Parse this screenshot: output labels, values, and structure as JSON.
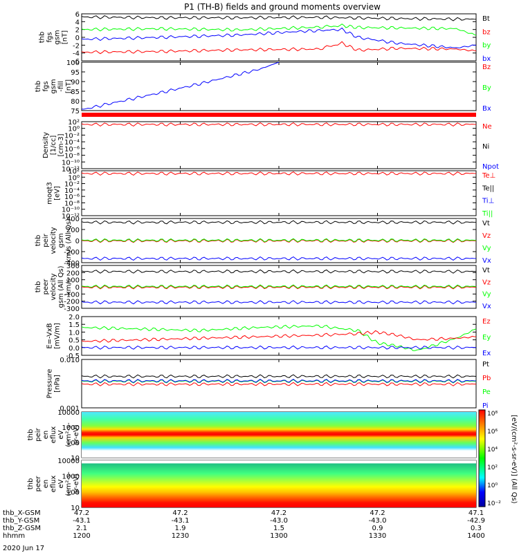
{
  "title": "P1 (TH-B) fields and ground moments overview",
  "colors": {
    "black": "#000000",
    "red": "#ff0000",
    "green": "#00ff00",
    "blue": "#0000ff"
  },
  "chart_data": [
    {
      "type": "line",
      "ylabel": [
        "thb",
        "fgs",
        "gsm",
        "[nT]"
      ],
      "ylim": [
        -6,
        6
      ],
      "yticks": [
        "6",
        "4",
        "2",
        "0",
        "-2",
        "-4",
        "-6"
      ],
      "legend": [
        {
          "name": "Bt",
          "color": "#000000"
        },
        {
          "name": "bz",
          "color": "#ff0000"
        },
        {
          "name": "by",
          "color": "#00ff00"
        },
        {
          "name": "bx",
          "color": "#0000ff"
        }
      ],
      "series": [
        {
          "name": "Bt",
          "color": "#000000",
          "x": [
            0,
            0.2,
            0.4,
            0.6,
            0.8,
            1
          ],
          "values": [
            5.2,
            5,
            5,
            5.1,
            4.8,
            4.6
          ]
        },
        {
          "name": "by",
          "color": "#00ff00",
          "x": [
            0,
            0.2,
            0.4,
            0.6,
            0.66,
            0.7,
            0.8,
            0.95,
            1
          ],
          "values": [
            2,
            2.2,
            1.9,
            2.6,
            3,
            2.5,
            2.4,
            2.2,
            0.5
          ]
        },
        {
          "name": "bx",
          "color": "#0000ff",
          "x": [
            0,
            0.2,
            0.4,
            0.55,
            0.66,
            0.7,
            0.8,
            0.95,
            1
          ],
          "values": [
            -0.5,
            0,
            0.6,
            1.5,
            2,
            0,
            -1.5,
            -2.7,
            -2
          ]
        },
        {
          "name": "bz",
          "color": "#ff0000",
          "x": [
            0,
            0.2,
            0.4,
            0.6,
            0.66,
            0.7,
            0.8,
            0.95,
            1
          ],
          "values": [
            -3.8,
            -3.6,
            -3.2,
            -3,
            -1.5,
            -3.3,
            -2.8,
            -3,
            -3.5
          ]
        }
      ]
    },
    {
      "type": "line",
      "ylabel": [
        "thb",
        "fgs",
        "gsm",
        "-fill",
        "[nT]"
      ],
      "ylim": [
        73,
        100
      ],
      "yticks": [
        "100",
        "95",
        "90",
        "85",
        "80",
        "75"
      ],
      "legend": [
        {
          "name": "Bz",
          "color": "#ff0000"
        },
        {
          "name": "By",
          "color": "#00ff00"
        },
        {
          "name": "Bx",
          "color": "#0000ff"
        }
      ],
      "series": [
        {
          "name": "Bx",
          "color": "#0000ff",
          "x": [
            0,
            0.2,
            0.3,
            0.45,
            0.5
          ],
          "values": [
            73.5,
            83,
            88,
            96,
            100
          ]
        }
      ]
    },
    {
      "type": "line",
      "ylabel": [
        "Density",
        "[1/cc]",
        "[cm-3]"
      ],
      "yscale": "log",
      "yticks": [
        "10²",
        "10⁰",
        "10⁻²",
        "10⁻⁴",
        "10⁻⁶",
        "10⁻⁸",
        "10⁻¹⁰",
        "10⁻¹²"
      ],
      "legend": [
        {
          "name": "Ne",
          "color": "#ff0000"
        },
        {
          "name": "Ni",
          "color": "#000000"
        },
        {
          "name": "Npot",
          "color": "#0000ff"
        }
      ],
      "series": [
        {
          "name": "Ne",
          "color": "#ff0000",
          "x": [
            0,
            1
          ],
          "values": [
            1,
            1
          ]
        }
      ]
    },
    {
      "type": "line",
      "ylabel": [
        "moqt3",
        "[eV]"
      ],
      "yscale": "log",
      "yticks": [
        "10²",
        "10⁰",
        "10⁻²",
        "10⁻⁴",
        "10⁻⁶",
        "10⁻⁸",
        "10⁻¹⁰",
        "10⁻¹²"
      ],
      "legend": [
        {
          "name": "Te⊥",
          "color": "#ff0000"
        },
        {
          "name": "Te||",
          "color": "#000000"
        },
        {
          "name": "Ti⊥",
          "color": "#0000ff"
        },
        {
          "name": "Ti||",
          "color": "#00ff00"
        }
      ],
      "series": [
        {
          "name": "Te",
          "color": "#ff0000",
          "x": [
            0,
            1
          ],
          "values": [
            100,
            100
          ]
        }
      ]
    },
    {
      "type": "line",
      "ylabel": [
        "thb",
        "peir",
        "velocity",
        "gsm",
        "km/s (All Qs)"
      ],
      "ylim": [
        -400,
        400
      ],
      "yticks": [
        "400",
        "200",
        "0",
        "-200",
        "-400"
      ],
      "legend": [
        {
          "name": "Vt",
          "color": "#000000"
        },
        {
          "name": "Vz",
          "color": "#ff0000"
        },
        {
          "name": "Vy",
          "color": "#00ff00"
        },
        {
          "name": "Vx",
          "color": "#0000ff"
        }
      ],
      "series": [
        {
          "name": "Vt",
          "color": "#000000",
          "x": [
            0,
            1
          ],
          "values": [
            330,
            330
          ]
        },
        {
          "name": "Vz",
          "color": "#ff0000",
          "x": [
            0,
            1
          ],
          "values": [
            -5,
            -5
          ]
        },
        {
          "name": "Vy",
          "color": "#00ff00",
          "x": [
            0,
            1
          ],
          "values": [
            5,
            5
          ]
        },
        {
          "name": "Vx",
          "color": "#0000ff",
          "x": [
            0,
            1
          ],
          "values": [
            -325,
            -325
          ]
        }
      ]
    },
    {
      "type": "line",
      "ylabel": [
        "thb",
        "peer",
        "velocity",
        "gsm (All Qs)",
        "km/s"
      ],
      "ylim": [
        -300,
        300
      ],
      "yticks": [
        "300",
        "200",
        "100",
        "0",
        "-100",
        "-200",
        "-300"
      ],
      "legend": [
        {
          "name": "Vt",
          "color": "#000000"
        },
        {
          "name": "Vz",
          "color": "#ff0000"
        },
        {
          "name": "Vy",
          "color": "#00ff00"
        },
        {
          "name": "Vx",
          "color": "#0000ff"
        }
      ],
      "series": [
        {
          "name": "Vt",
          "color": "#000000",
          "x": [
            0,
            1
          ],
          "values": [
            215,
            215
          ]
        },
        {
          "name": "Vz",
          "color": "#ff0000",
          "x": [
            0,
            1
          ],
          "values": [
            -5,
            -5
          ]
        },
        {
          "name": "Vy",
          "color": "#00ff00",
          "x": [
            0,
            1
          ],
          "values": [
            5,
            5
          ]
        },
        {
          "name": "Vx",
          "color": "#0000ff",
          "x": [
            0,
            1
          ],
          "values": [
            -215,
            -215
          ]
        }
      ]
    },
    {
      "type": "line",
      "ylabel": [
        "E=-VxB",
        "[mV/m]"
      ],
      "ylim": [
        -0.5,
        2
      ],
      "yticks": [
        "2.0",
        "1.5",
        "1.0",
        "0.5",
        "0.0",
        "-0.5"
      ],
      "legend": [
        {
          "name": "Ez",
          "color": "#ff0000"
        },
        {
          "name": "Ey",
          "color": "#00ff00"
        },
        {
          "name": "Ex",
          "color": "#0000ff"
        }
      ],
      "series": [
        {
          "name": "Ey",
          "color": "#00ff00",
          "x": [
            0,
            0.15,
            0.3,
            0.45,
            0.6,
            0.7,
            0.75,
            0.8,
            0.85,
            0.95,
            1
          ],
          "values": [
            1.3,
            1.2,
            1.1,
            1.3,
            1.4,
            1.1,
            0.3,
            0.1,
            -0.2,
            0.6,
            1.2
          ]
        },
        {
          "name": "Ez",
          "color": "#ff0000",
          "x": [
            0,
            0.15,
            0.3,
            0.45,
            0.6,
            0.7,
            0.75,
            0.8,
            0.85,
            0.95,
            1
          ],
          "values": [
            0.4,
            0.5,
            0.6,
            0.7,
            0.8,
            0.9,
            1.0,
            0.8,
            0.5,
            0.6,
            0.7
          ]
        },
        {
          "name": "Ex",
          "color": "#0000ff",
          "x": [
            0,
            1
          ],
          "values": [
            0,
            0
          ]
        }
      ]
    },
    {
      "type": "line",
      "ylabel": [
        "Pressure",
        "[nPa]"
      ],
      "yscale": "log",
      "ylim": [
        0.001,
        0.1
      ],
      "yticks": [
        "0.010",
        "0.001"
      ],
      "legend": [
        {
          "name": "Pt",
          "color": "#000000"
        },
        {
          "name": "Pb",
          "color": "#ff0000"
        },
        {
          "name": "Pe",
          "color": "#00ff00"
        },
        {
          "name": "Pi",
          "color": "#0000ff"
        }
      ],
      "series": [
        {
          "name": "Pt",
          "color": "#000000",
          "x": [
            0,
            1
          ],
          "values": [
            0.02,
            0.02
          ]
        },
        {
          "name": "Pe",
          "color": "#00ff00",
          "x": [
            0,
            1
          ],
          "values": [
            0.0125,
            0.0125
          ]
        },
        {
          "name": "Pi",
          "color": "#0000ff",
          "x": [
            0,
            1
          ],
          "values": [
            0.013,
            0.013
          ]
        },
        {
          "name": "Pb",
          "color": "#ff0000",
          "x": [
            0,
            1
          ],
          "values": [
            0.0095,
            0.0095
          ]
        }
      ]
    },
    {
      "type": "heatmap",
      "ylabel": [
        "thb",
        "peir",
        "en",
        "eflux",
        "eV",
        "(cm²-s-",
        "sr-eV)"
      ],
      "yscale": "log",
      "ylim": [
        5,
        20000
      ],
      "yticks": [
        "10000",
        "1000",
        "100",
        "10"
      ]
    },
    {
      "type": "heatmap",
      "ylabel": [
        "thb",
        "peer",
        "en",
        "eflux",
        "eV",
        "(cm²-s-",
        "sr-eV)"
      ],
      "yscale": "log",
      "ylim": [
        5,
        20000
      ],
      "yticks": [
        "10000",
        "1000",
        "100",
        "10"
      ]
    }
  ],
  "colorbar": {
    "label": "[eV/(cm²-s-sr-eV)] (All Qs)",
    "ticks": [
      "10⁸",
      "10⁶",
      "10⁴",
      "10²",
      "10⁰",
      "10⁻²"
    ]
  },
  "xaxis": {
    "rows": [
      {
        "label": "thb_X-GSM",
        "values": [
          "47.2",
          "47.2",
          "47.2",
          "47.2",
          "47.1"
        ]
      },
      {
        "label": "thb_Y-GSM",
        "values": [
          "-43.1",
          "-43.1",
          "-43.0",
          "-43.0",
          "-42.9"
        ]
      },
      {
        "label": "thb_Z-GSM",
        "values": [
          "2.1",
          "1.9",
          "1.5",
          "0.9",
          "0.3"
        ]
      },
      {
        "label": "hhmm",
        "values": [
          "1200",
          "1230",
          "1300",
          "1330",
          "1400"
        ]
      }
    ],
    "date": "2020 Jun 17"
  }
}
